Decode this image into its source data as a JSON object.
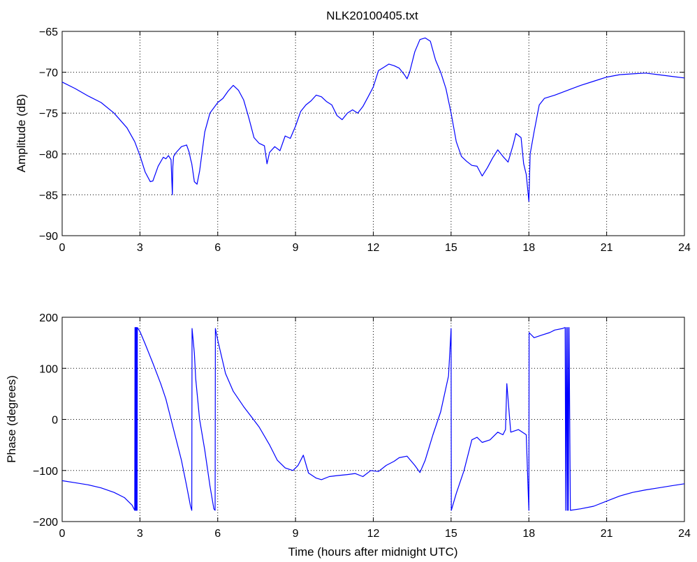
{
  "figure": {
    "title": "NLK20100405.txt"
  },
  "colors": {
    "series": "#0000ff",
    "background": "#ffffff",
    "axis": "#000000"
  },
  "chart_data": [
    {
      "id": "amplitude",
      "type": "line",
      "title": "NLK20100405.txt",
      "xlabel": "",
      "ylabel": "Amplitude (dB)",
      "xlim": [
        0,
        24
      ],
      "ylim": [
        -90,
        -65
      ],
      "xticks": [
        0,
        3,
        6,
        9,
        12,
        15,
        18,
        21,
        24
      ],
      "yticks": [
        -90,
        -85,
        -80,
        -75,
        -70,
        -65
      ],
      "grid": true,
      "series": [
        {
          "x": [
            0,
            0.5,
            1,
            1.5,
            2,
            2.5,
            2.8,
            3.0,
            3.2,
            3.4,
            3.5,
            3.7,
            3.9,
            4.0,
            4.1,
            4.2,
            4.25,
            4.27,
            4.3,
            4.4,
            4.6,
            4.8,
            4.9,
            4.95,
            5.0,
            5.1,
            5.2,
            5.3,
            5.5,
            5.7,
            6.0,
            6.2,
            6.4,
            6.6,
            6.8,
            7.0,
            7.2,
            7.4,
            7.6,
            7.8,
            7.9,
            8.0,
            8.2,
            8.4,
            8.6,
            8.8,
            9.0,
            9.2,
            9.4,
            9.6,
            9.8,
            10.0,
            10.2,
            10.4,
            10.6,
            10.8,
            11.0,
            11.2,
            11.4,
            11.6,
            11.8,
            12.0,
            12.2,
            12.4,
            12.6,
            12.8,
            13.0,
            13.2,
            13.3,
            13.4,
            13.6,
            13.8,
            14.0,
            14.2,
            14.4,
            14.6,
            14.8,
            15.0,
            15.2,
            15.4,
            15.6,
            15.8,
            16.0,
            16.2,
            16.4,
            16.6,
            16.8,
            17.0,
            17.2,
            17.4,
            17.5,
            17.7,
            17.8,
            17.9,
            18.0,
            18.05,
            18.2,
            18.4,
            18.6,
            19.0,
            19.5,
            20.0,
            20.5,
            21.0,
            21.5,
            22.0,
            22.5,
            23.0,
            23.5,
            24.0
          ],
          "values": [
            -71.2,
            -72.0,
            -72.9,
            -73.7,
            -75.0,
            -76.8,
            -78.5,
            -80.2,
            -82.2,
            -83.4,
            -83.3,
            -81.5,
            -80.4,
            -80.6,
            -80.2,
            -80.7,
            -85.0,
            -81.5,
            -80.3,
            -79.8,
            -79.1,
            -78.9,
            -79.8,
            -80.6,
            -81.2,
            -83.4,
            -83.7,
            -82.1,
            -77.3,
            -75.0,
            -73.7,
            -73.2,
            -72.3,
            -71.6,
            -72.2,
            -73.4,
            -75.6,
            -78.0,
            -78.7,
            -79.0,
            -81.2,
            -79.8,
            -79.1,
            -79.6,
            -77.8,
            -78.1,
            -76.6,
            -74.8,
            -74.0,
            -73.5,
            -72.8,
            -73.0,
            -73.6,
            -74.0,
            -75.3,
            -75.8,
            -75.0,
            -74.6,
            -75.0,
            -74.2,
            -73.0,
            -71.8,
            -69.8,
            -69.4,
            -69.0,
            -69.2,
            -69.5,
            -70.3,
            -70.8,
            -70.0,
            -67.5,
            -66.0,
            -65.8,
            -66.2,
            -68.5,
            -70.0,
            -72.0,
            -75.0,
            -78.5,
            -80.3,
            -80.9,
            -81.4,
            -81.5,
            -82.7,
            -81.7,
            -80.5,
            -79.5,
            -80.3,
            -81.0,
            -78.8,
            -77.5,
            -78.0,
            -81.2,
            -82.5,
            -85.8,
            -80.0,
            -77.3,
            -74.0,
            -73.2,
            -72.8,
            -72.2,
            -71.6,
            -71.1,
            -70.6,
            -70.3,
            -70.2,
            -70.1,
            -70.3,
            -70.5,
            -70.7
          ]
        }
      ]
    },
    {
      "id": "phase",
      "type": "line",
      "title": "",
      "xlabel": "Time (hours after midnight UTC)",
      "ylabel": "Phase (degrees)",
      "xlim": [
        0,
        24
      ],
      "ylim": [
        -200,
        200
      ],
      "xticks": [
        0,
        3,
        6,
        9,
        12,
        15,
        18,
        21,
        24
      ],
      "yticks": [
        -200,
        -100,
        0,
        100,
        200
      ],
      "grid": true,
      "series": [
        {
          "x": [
            0,
            0.5,
            1.0,
            1.5,
            2.0,
            2.4,
            2.7,
            2.8,
            2.81,
            2.83,
            2.84,
            2.86,
            2.87,
            2.89,
            2.9,
            3.0,
            3.2,
            3.5,
            3.8,
            4.0,
            4.3,
            4.6,
            4.8,
            4.95,
            5.0,
            5.01,
            5.1,
            5.15,
            5.3,
            5.5,
            5.7,
            5.85,
            5.9,
            5.91,
            6.0,
            6.3,
            6.6,
            7.0,
            7.3,
            7.6,
            8.0,
            8.3,
            8.6,
            8.9,
            9.1,
            9.3,
            9.5,
            9.8,
            10.0,
            10.3,
            10.6,
            11.0,
            11.3,
            11.6,
            11.9,
            12.2,
            12.5,
            12.8,
            13.0,
            13.3,
            13.6,
            13.8,
            14.0,
            14.3,
            14.6,
            14.9,
            14.97,
            15.0,
            15.01,
            15.2,
            15.5,
            15.8,
            16.0,
            16.2,
            16.5,
            16.8,
            17.0,
            17.1,
            17.15,
            17.3,
            17.6,
            17.9,
            17.98,
            18.0,
            18.01,
            18.2,
            18.5,
            18.8,
            19.0,
            19.3,
            19.4,
            19.42,
            19.45,
            19.48,
            19.5,
            19.52,
            19.55,
            19.6,
            20.0,
            20.5,
            21.0,
            21.5,
            22.0,
            22.5,
            23.0,
            23.5,
            24.0
          ],
          "values": [
            -120,
            -124,
            -128,
            -134,
            -143,
            -153,
            -168,
            -178,
            180,
            -178,
            180,
            -178,
            180,
            -178,
            180,
            172,
            148,
            110,
            70,
            40,
            -20,
            -80,
            -130,
            -170,
            -178,
            178,
            130,
            80,
            0,
            -60,
            -130,
            -175,
            -178,
            178,
            155,
            90,
            55,
            25,
            5,
            -15,
            -50,
            -80,
            -95,
            -100,
            -90,
            -70,
            -105,
            -115,
            -118,
            -112,
            -110,
            -108,
            -106,
            -112,
            -100,
            -102,
            -90,
            -82,
            -75,
            -72,
            -90,
            -104,
            -80,
            -30,
            15,
            85,
            150,
            178,
            -178,
            -145,
            -100,
            -40,
            -35,
            -45,
            -40,
            -25,
            -30,
            -20,
            70,
            -25,
            -20,
            -30,
            -150,
            -178,
            170,
            160,
            165,
            170,
            175,
            178,
            180,
            -178,
            180,
            -178,
            180,
            -178,
            180,
            -178,
            -175,
            -170,
            -160,
            -150,
            -143,
            -138,
            -134,
            -130,
            -126
          ]
        }
      ]
    }
  ]
}
